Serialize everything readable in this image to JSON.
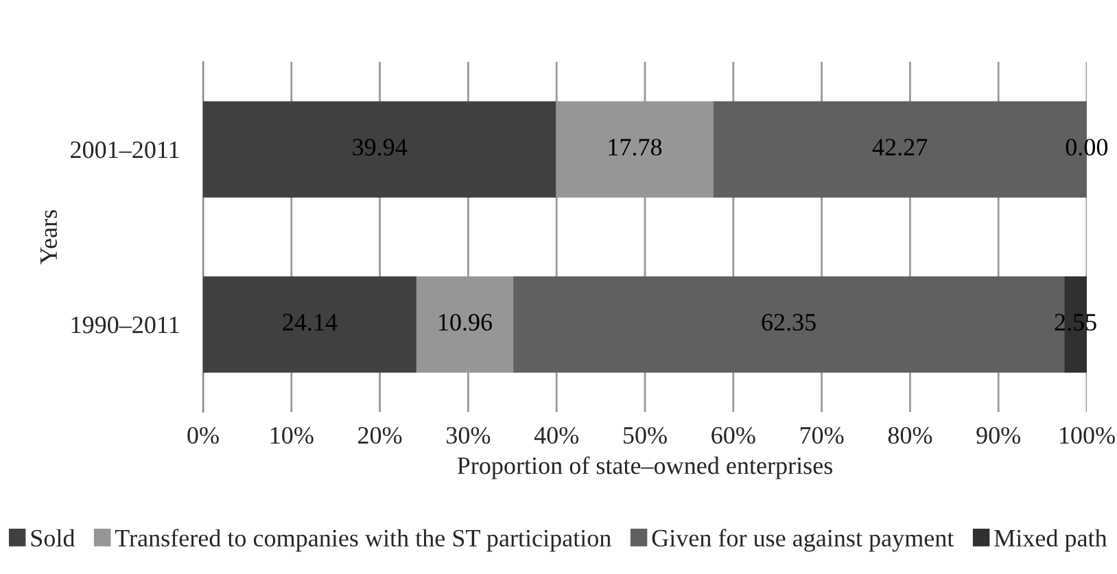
{
  "chart_data": {
    "type": "bar",
    "orientation": "horizontal",
    "stacked": true,
    "xlabel": "Proportion of state–owned enterprises",
    "ylabel": "Years",
    "categories": [
      "2001–2011",
      "1990–2011"
    ],
    "series": [
      {
        "name": "Sold",
        "color": "#404040",
        "values": [
          39.94,
          24.14
        ],
        "value_labels": [
          "39.94",
          "24.14"
        ]
      },
      {
        "name": "Transfered to companies with the ST participation",
        "color": "#969696",
        "values": [
          17.78,
          10.96
        ],
        "value_labels": [
          "17.78",
          "10.96"
        ]
      },
      {
        "name": "Given for use against payment",
        "color": "#606060",
        "values": [
          42.27,
          62.35
        ],
        "value_labels": [
          "42.27",
          "62.35"
        ]
      },
      {
        "name": "Mixed path",
        "color": "#303030",
        "values": [
          0.0,
          2.55
        ],
        "value_labels": [
          "0.00",
          "2.55"
        ]
      }
    ],
    "xlim": [
      0,
      100
    ],
    "xticks": [
      {
        "value": 0,
        "label": "0%"
      },
      {
        "value": 10,
        "label": "10%"
      },
      {
        "value": 20,
        "label": "20%"
      },
      {
        "value": 30,
        "label": "30%"
      },
      {
        "value": 40,
        "label": "40%"
      },
      {
        "value": 50,
        "label": "50%"
      },
      {
        "value": 60,
        "label": "60%"
      },
      {
        "value": 70,
        "label": "70%"
      },
      {
        "value": 80,
        "label": "80%"
      },
      {
        "value": 90,
        "label": "90%"
      },
      {
        "value": 100,
        "label": "100%"
      }
    ],
    "grid": "x",
    "legend": "bottom"
  }
}
